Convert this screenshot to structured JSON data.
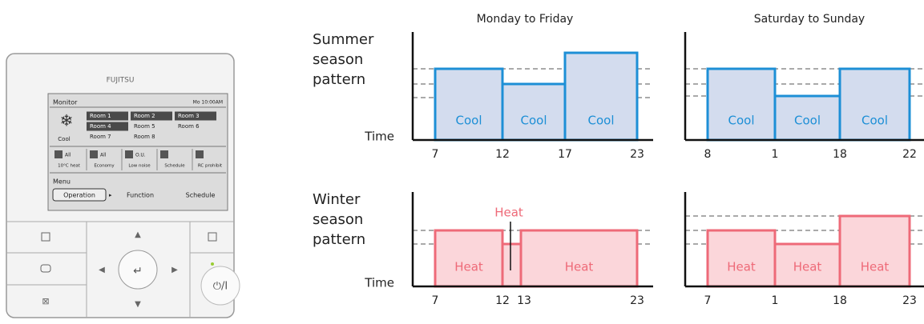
{
  "controller": {
    "brand": "FUJITSU",
    "screen": {
      "title": "Monitor",
      "clock": "Mo 10:00AM",
      "mode": "Cool",
      "rooms": [
        "Room 1",
        "Room 2",
        "Room 3",
        "Room 4",
        "Room 5",
        "Room 6",
        "Room 7",
        "Room 8"
      ],
      "functions": [
        {
          "icon": "All",
          "label": "10°C heat"
        },
        {
          "icon": "All",
          "label": "Economy"
        },
        {
          "icon": "O.U.",
          "label": "Low noise"
        },
        {
          "label": "Schedule"
        },
        {
          "label": "RC prohibit"
        }
      ],
      "menu_title": "Menu",
      "menu": [
        "Operation",
        "Function",
        "Schedule"
      ]
    },
    "power": "⏻/I"
  },
  "columns": [
    "Monday to Friday",
    "Saturday to Sunday"
  ],
  "rows": [
    {
      "label": [
        "Summer",
        "season",
        "pattern"
      ],
      "time_label": "Time",
      "panels": [
        {
          "blocks": [
            "Cool",
            "Cool",
            "Cool"
          ],
          "times": [
            "7",
            "12",
            "17",
            "23"
          ]
        },
        {
          "blocks": [
            "Cool",
            "Cool",
            "Cool"
          ],
          "times": [
            "8",
            "1",
            "18",
            "22"
          ]
        }
      ]
    },
    {
      "label": [
        "Winter",
        "season",
        "pattern"
      ],
      "time_label": "Time",
      "panels": [
        {
          "blocks": [
            "Heat",
            "Heat"
          ],
          "annotation": "Heat",
          "times": [
            "7",
            "12",
            "13",
            "23"
          ]
        },
        {
          "blocks": [
            "Heat",
            "Heat",
            "Heat"
          ],
          "times": [
            "7",
            "1",
            "18",
            "23"
          ]
        }
      ]
    }
  ]
}
